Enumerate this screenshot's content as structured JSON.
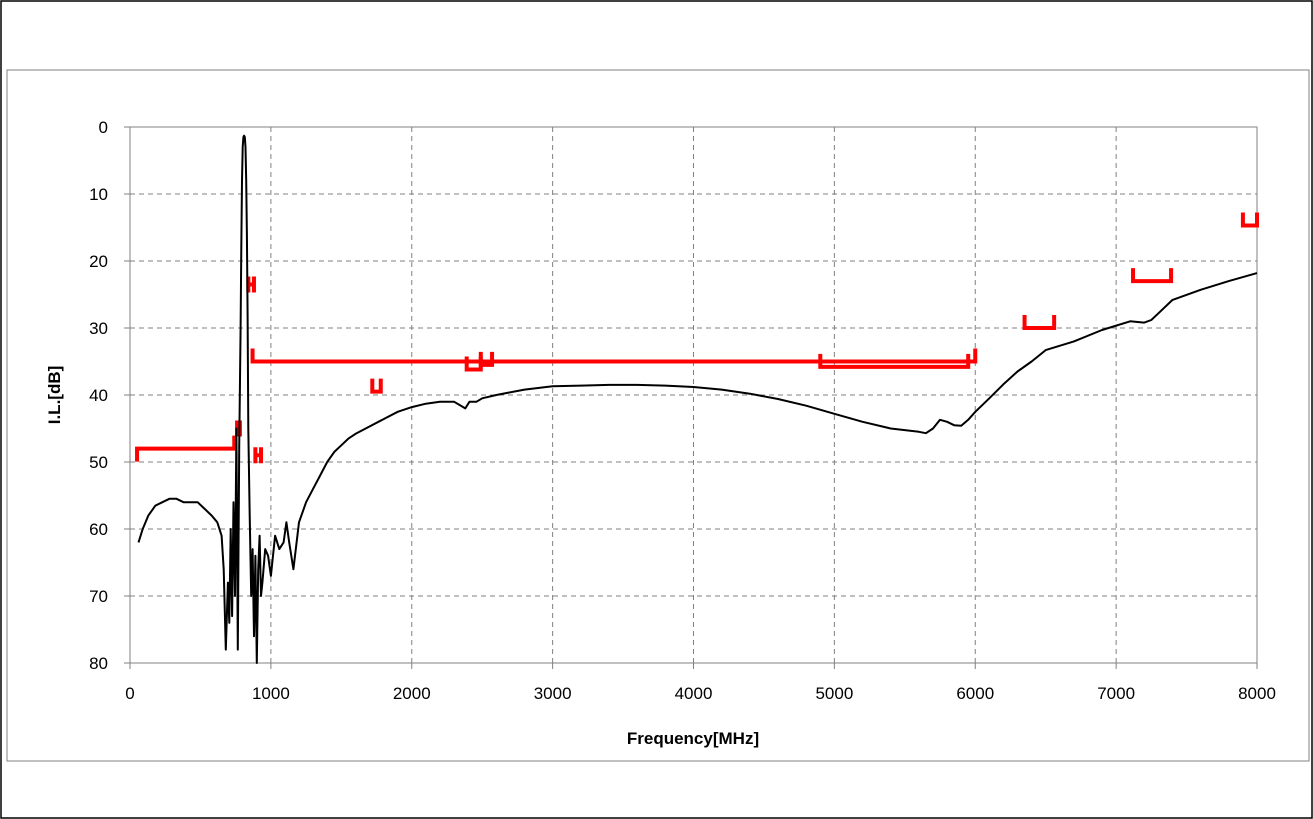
{
  "chart_data": {
    "type": "line",
    "xlabel": "Frequency[MHz]",
    "ylabel": "I.L.[dB]",
    "xlim": [
      0,
      8000
    ],
    "ylim": [
      0,
      80
    ],
    "y_inverted": true,
    "grid": true,
    "legend": "none",
    "x_ticks": [
      "0",
      "1000",
      "2000",
      "3000",
      "4000",
      "5000",
      "6000",
      "7000",
      "8000"
    ],
    "y_ticks": [
      "0",
      "10",
      "20",
      "30",
      "40",
      "50",
      "60",
      "70",
      "80"
    ],
    "colors": {
      "measurement": "#000000",
      "spec": "#ff0000",
      "grid": "#808080"
    },
    "series": [
      {
        "role": "measurement",
        "x": [
          60,
          90,
          130,
          180,
          230,
          280,
          330,
          380,
          430,
          480,
          530,
          580,
          620,
          650,
          665,
          680,
          695,
          705,
          715,
          725,
          735,
          745,
          755,
          765,
          775,
          785,
          790,
          795,
          800,
          805,
          810,
          815,
          820,
          825,
          830,
          835,
          840,
          850,
          860,
          870,
          880,
          890,
          900,
          910,
          920,
          930,
          940,
          960,
          980,
          1000,
          1030,
          1060,
          1090,
          1110,
          1130,
          1160,
          1200,
          1250,
          1300,
          1350,
          1400,
          1450,
          1500,
          1550,
          1600,
          1700,
          1800,
          1900,
          2000,
          2100,
          2200,
          2300,
          2380,
          2410,
          2460,
          2500,
          2600,
          2800,
          3000,
          3200,
          3400,
          3600,
          3800,
          4000,
          4200,
          4400,
          4600,
          4800,
          5000,
          5200,
          5400,
          5600,
          5650,
          5700,
          5750,
          5800,
          5850,
          5900,
          5950,
          6000,
          6100,
          6200,
          6300,
          6400,
          6500,
          6700,
          6900,
          7100,
          7200,
          7250,
          7300,
          7400,
          7600,
          7800,
          8000
        ],
        "y": [
          62,
          60,
          58,
          56.5,
          56,
          55.5,
          55.5,
          56,
          56,
          56,
          57,
          58,
          59,
          61,
          66,
          78,
          68,
          74,
          60,
          73,
          56,
          70,
          45,
          78,
          48,
          30,
          18,
          8,
          3,
          1.5,
          1.3,
          1.5,
          3,
          8,
          16,
          28,
          45,
          58,
          70,
          63,
          76,
          64,
          80,
          66,
          61,
          70,
          68,
          63,
          64,
          67,
          61,
          63,
          62,
          59,
          62,
          66,
          59,
          56,
          54,
          52,
          50,
          48.5,
          47.5,
          46.5,
          45.8,
          44.7,
          43.6,
          42.5,
          41.8,
          41.3,
          41,
          41,
          42,
          41,
          41,
          40.5,
          40,
          39.2,
          38.7,
          38.6,
          38.5,
          38.5,
          38.6,
          38.8,
          39.2,
          39.8,
          40.6,
          41.6,
          42.8,
          44,
          45,
          45.5,
          45.7,
          45,
          43.7,
          44,
          44.5,
          44.6,
          43.7,
          42.5,
          40.5,
          38.4,
          36.5,
          35,
          33.3,
          32,
          30.3,
          29,
          29.2,
          28.8,
          27.8,
          25.8,
          24.3,
          23,
          21.8
        ]
      }
    ],
    "spec_masks": [
      {
        "x_start": 50,
        "x_end": 740,
        "y": 48,
        "marker": "corner"
      },
      {
        "x_start": 760,
        "x_end": 780,
        "y": 45,
        "marker": "tick"
      },
      {
        "x_start": 840,
        "x_end": 880,
        "y": 23.5,
        "marker": "tick"
      },
      {
        "x_start": 870,
        "x_end": 6000,
        "y": 35,
        "marker": "line"
      },
      {
        "x_start": 890,
        "x_end": 930,
        "y": 49,
        "marker": "tick"
      },
      {
        "x_start": 1720,
        "x_end": 1780,
        "y": 39.5,
        "marker": "bracket"
      },
      {
        "x_start": 2390,
        "x_end": 2490,
        "y": 36.2,
        "marker": "bracket"
      },
      {
        "x_start": 2490,
        "x_end": 2570,
        "y": 35.5,
        "marker": "bracket"
      },
      {
        "x_start": 4900,
        "x_end": 5950,
        "y": 35.8,
        "marker": "bracket"
      },
      {
        "x_start": 6350,
        "x_end": 6560,
        "y": 30,
        "marker": "bracket"
      },
      {
        "x_start": 7120,
        "x_end": 7390,
        "y": 23,
        "marker": "bracket"
      },
      {
        "x_start": 7900,
        "x_end": 8000,
        "y": 14.7,
        "marker": "bracket"
      }
    ]
  }
}
